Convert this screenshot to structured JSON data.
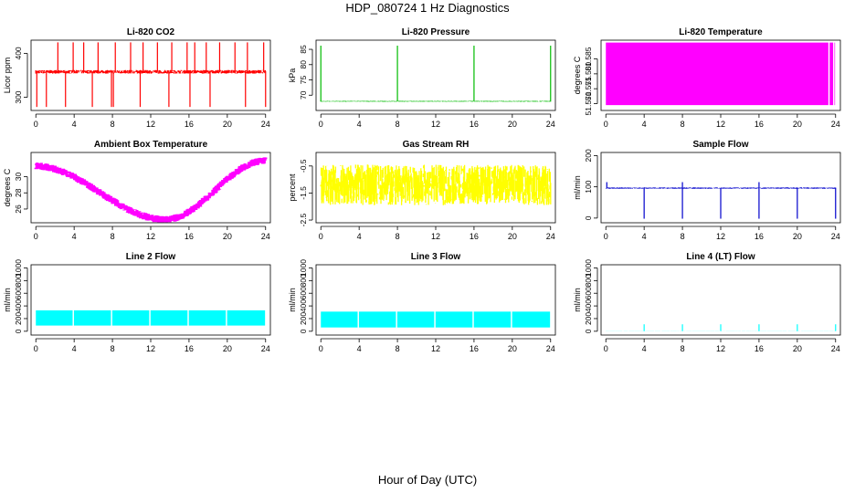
{
  "title": "HDP_080724  1 Hz Diagnostics",
  "xlabel": "Hour of Day (UTC)",
  "x_ticks": [
    0,
    4,
    8,
    12,
    16,
    20,
    24
  ],
  "x_tick_labels": [
    "0",
    "4",
    "8",
    "12",
    "16",
    "20",
    "24"
  ],
  "chart_data": [
    {
      "type": "line",
      "title": "Li-820 CO2",
      "ylabel": "Licor ppm",
      "color": "#ff0000",
      "xlim": [
        -0.5,
        24.5
      ],
      "ylim": [
        270,
        430
      ],
      "yticks": [
        300,
        400
      ],
      "ytick_labels": [
        "300",
        "400"
      ],
      "series": [
        {
          "name": "CO2",
          "shape": "co2",
          "baseline": 358,
          "noise": 4
        }
      ],
      "spikes_up": [
        2.3,
        3.9,
        5.0,
        6.5,
        8.3,
        9.9,
        11.2,
        12.7,
        14.2,
        15.8,
        16.6,
        17.8,
        19.2,
        20.8,
        22.1,
        23.8
      ],
      "spike_up_top": 425,
      "spikes_down": [
        0.1,
        1.1,
        3.1,
        5.9,
        7.9,
        8.1,
        10.9,
        13.9,
        16.1,
        18.2,
        21.9,
        24.0
      ],
      "spike_down_bottom": 278
    },
    {
      "type": "line",
      "title": "Li-820 Pressure",
      "ylabel": "kPa",
      "color": "#00bb00",
      "xlim": [
        -0.5,
        24.5
      ],
      "ylim": [
        65,
        88
      ],
      "yticks": [
        70,
        75,
        80,
        85
      ],
      "ytick_labels": [
        "70",
        "75",
        "80",
        "85"
      ],
      "series": [
        {
          "name": "Pressure",
          "shape": "flat",
          "baseline": 68,
          "noise": 0.15
        }
      ],
      "spikes_up": [
        0.0,
        8.0,
        16.0,
        24.0
      ],
      "spike_up_top": 86.2,
      "spikes_down": [],
      "spike_down_bottom": 68
    },
    {
      "type": "area",
      "title": "Li-820 Temperature",
      "ylabel": "degrees C",
      "color": "#ff00ff",
      "xlim": [
        -0.5,
        24.5
      ],
      "ylim": [
        51.5677,
        51.5913
      ],
      "yticks": [
        51.57,
        51.575,
        51.58,
        51.585
      ],
      "ytick_labels": [
        "51.570",
        "51.575",
        "51.580",
        "51.585"
      ],
      "series": [
        {
          "name": "Temperature",
          "shape": "band",
          "low": 51.5695,
          "high": 51.5905
        }
      ],
      "gaps": [
        23.3,
        23.8
      ],
      "spikes_up": [],
      "spikes_down": []
    },
    {
      "type": "line",
      "title": "Ambient Box Temperature",
      "ylabel": "degrees C",
      "color": "#ff00ff",
      "xlim": [
        -0.5,
        24.5
      ],
      "ylim": [
        24.3,
        33.0
      ],
      "yticks": [
        26,
        28,
        30
      ],
      "ytick_labels": [
        "26",
        "28",
        "30"
      ],
      "series": [
        {
          "name": "Ambient",
          "shape": "ambient",
          "start": 31.3,
          "min_hour": 13.5,
          "min": 24.7,
          "end": 32.0,
          "noise": 0.45
        }
      ],
      "spikes_up": [],
      "spikes_down": []
    },
    {
      "type": "line",
      "title": "Gas Stream RH",
      "ylabel": "percent",
      "color": "#ffff00",
      "xlim": [
        -0.5,
        24.5
      ],
      "ylim": [
        -2.6,
        0.0
      ],
      "yticks": [
        -2.5,
        -1.5,
        -0.5
      ],
      "ytick_labels": [
        "-2.5",
        "-1.5",
        "-0.5"
      ],
      "series": [
        {
          "name": "RH",
          "shape": "noise",
          "baseline": -1.2,
          "noise": 0.75
        }
      ],
      "spikes_up": [],
      "spikes_down": []
    },
    {
      "type": "line",
      "title": "Sample Flow",
      "ylabel": "ml/min",
      "color": "#0000cc",
      "xlim": [
        -0.5,
        24.5
      ],
      "ylim": [
        -15,
        210
      ],
      "yticks": [
        0,
        100,
        200
      ],
      "ytick_labels": [
        "0",
        "100",
        "200"
      ],
      "series": [
        {
          "name": "Sample",
          "shape": "flat",
          "baseline": 96,
          "noise": 2
        }
      ],
      "spikes_up": [
        0.1,
        8.0,
        16.0
      ],
      "spike_up_top": 115,
      "spikes_down": [
        4.0,
        8.0,
        12.0,
        16.0,
        20.0,
        24.0
      ],
      "spike_down_bottom": -2
    },
    {
      "type": "area",
      "title": "Line 2 Flow",
      "ylabel": "ml/min",
      "color": "#00ffff",
      "xlim": [
        -0.5,
        24.5
      ],
      "ylim": [
        -60,
        1050
      ],
      "yticks": [
        0,
        200,
        400,
        600,
        800,
        1000
      ],
      "ytick_labels": [
        "0",
        "200",
        "400",
        "600",
        "800",
        "1000"
      ],
      "series": [
        {
          "name": "Line2",
          "shape": "band",
          "low": 90,
          "high": 330
        }
      ],
      "gaps": [
        3.9,
        7.9,
        11.9,
        15.9,
        19.9
      ],
      "spikes_up": [],
      "spikes_down": []
    },
    {
      "type": "area",
      "title": "Line 3 Flow",
      "ylabel": "ml/min",
      "color": "#00ffff",
      "xlim": [
        -0.5,
        24.5
      ],
      "ylim": [
        -60,
        1050
      ],
      "yticks": [
        0,
        200,
        400,
        600,
        800,
        1000
      ],
      "ytick_labels": [
        "0",
        "200",
        "400",
        "600",
        "800",
        "1000"
      ],
      "series": [
        {
          "name": "Line3",
          "shape": "band",
          "low": 60,
          "high": 310
        }
      ],
      "gaps": [
        3.9,
        7.9,
        11.9,
        15.9,
        19.9
      ],
      "spikes_up": [],
      "spikes_down": []
    },
    {
      "type": "line",
      "title": "Line 4 (LT) Flow",
      "ylabel": "ml/min",
      "color": "#00ffff",
      "xlim": [
        -0.5,
        24.5
      ],
      "ylim": [
        -60,
        1050
      ],
      "yticks": [
        0,
        200,
        400,
        600,
        800,
        1000
      ],
      "ytick_labels": [
        "0",
        "200",
        "400",
        "600",
        "800",
        "1000"
      ],
      "series": [
        {
          "name": "Line4",
          "shape": "flat",
          "baseline": 3,
          "noise": 1
        }
      ],
      "spikes_up": [
        4.0,
        8.0,
        12.0,
        16.0,
        20.0,
        24.0
      ],
      "spike_up_top": 110,
      "spikes_down": [],
      "spike_down_bottom": 0
    }
  ]
}
